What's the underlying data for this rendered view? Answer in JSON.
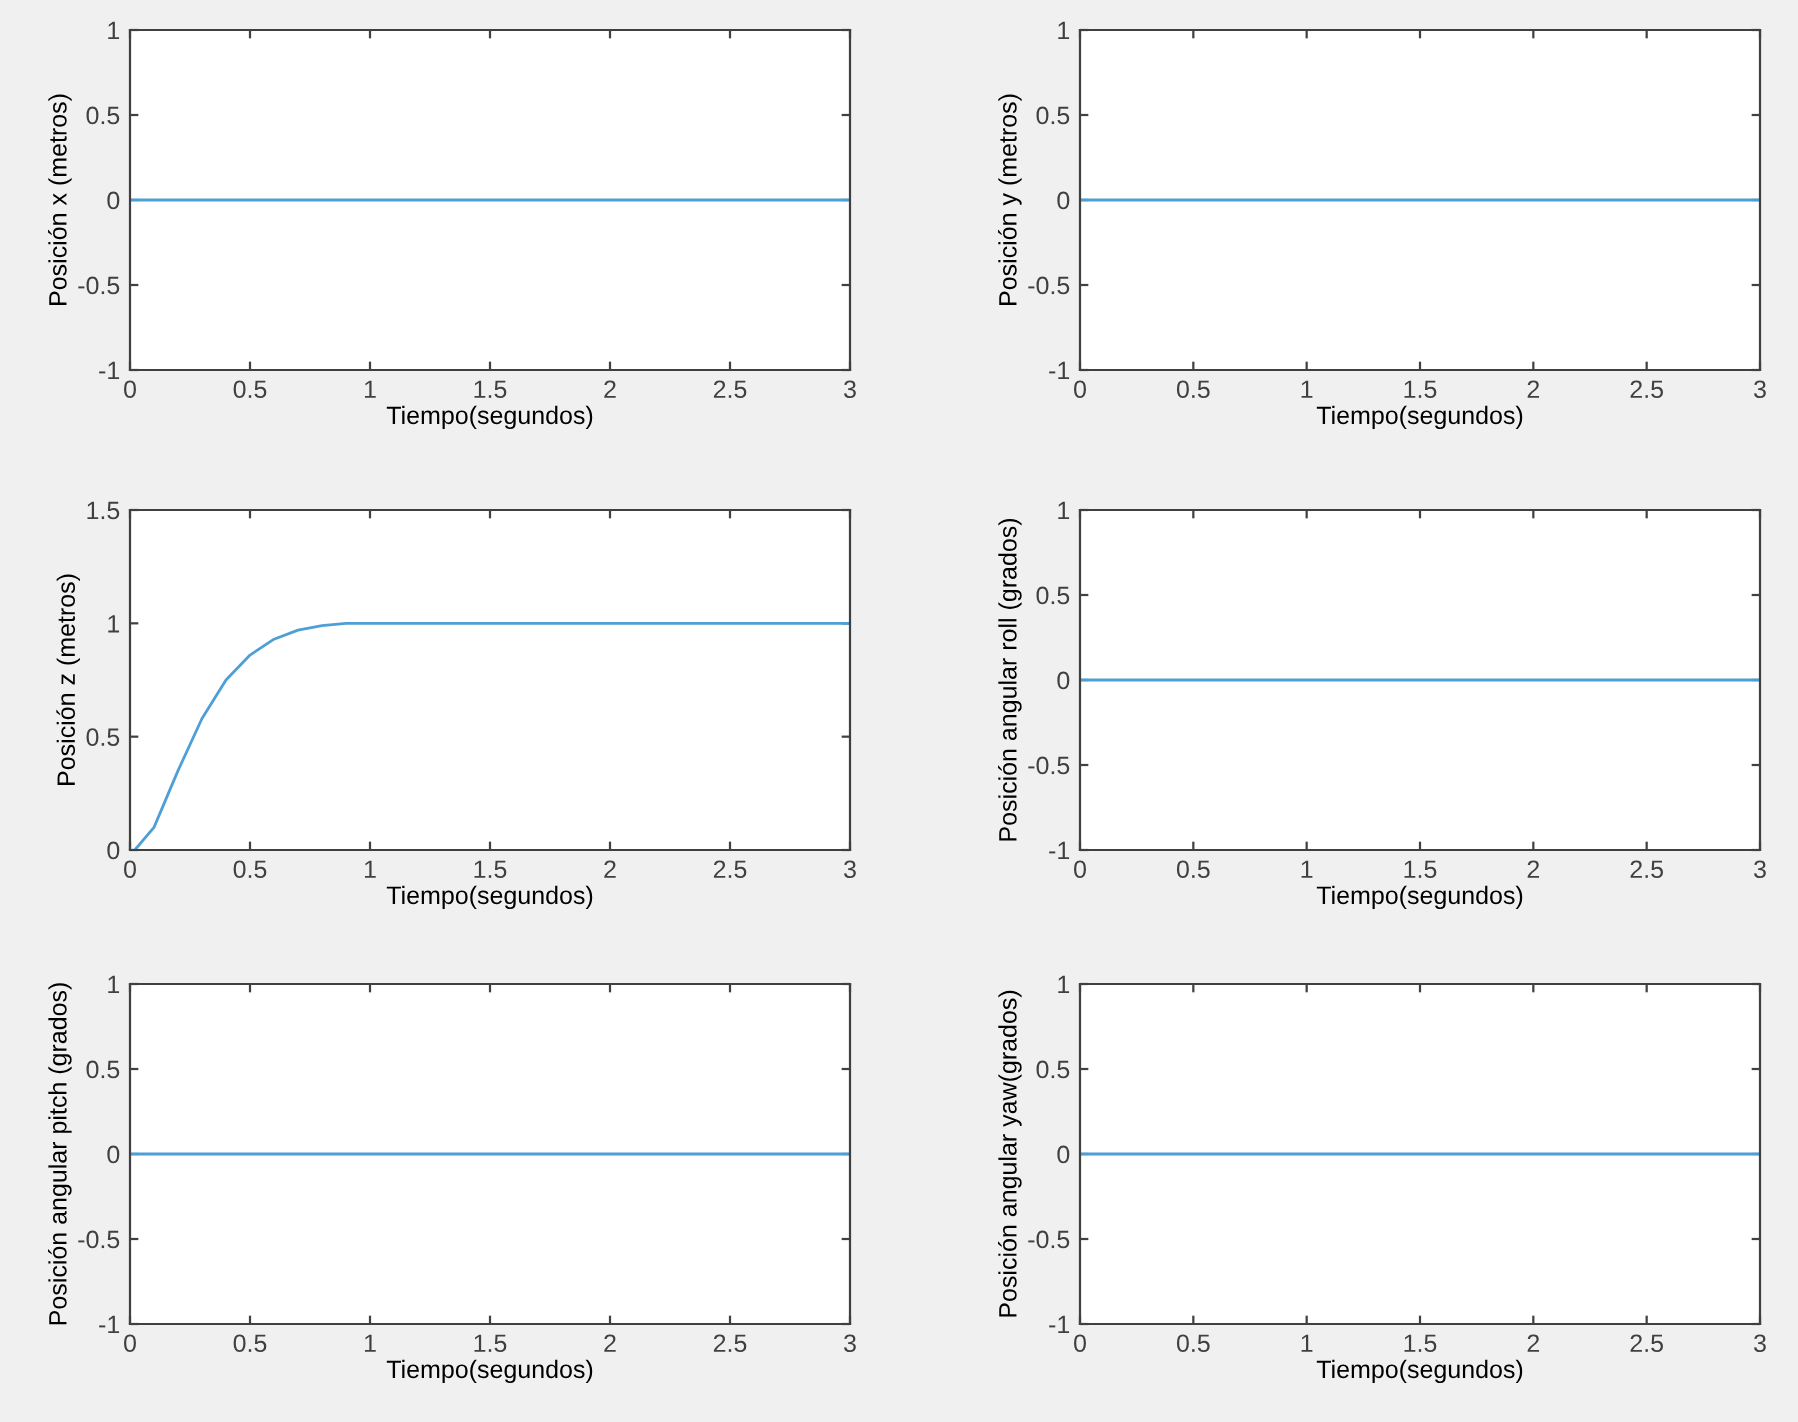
{
  "chart_data": [
    {
      "type": "line",
      "xlabel": "Tiempo(segundos)",
      "ylabel": "Posición x (metros)",
      "x": [
        0,
        3
      ],
      "series": [
        {
          "color": "#4d9fd6",
          "values": [
            0,
            0
          ]
        }
      ],
      "xlim": [
        0,
        3
      ],
      "xticks": [
        0,
        0.5,
        1,
        1.5,
        2,
        2.5,
        3
      ],
      "ylim": [
        -1,
        1
      ],
      "yticks": [
        -1,
        -0.5,
        0,
        0.5,
        1
      ],
      "grid": false,
      "legend": false
    },
    {
      "type": "line",
      "xlabel": "Tiempo(segundos)",
      "ylabel": "Posición y (metros)",
      "x": [
        0,
        3
      ],
      "series": [
        {
          "color": "#4d9fd6",
          "values": [
            0,
            0
          ]
        }
      ],
      "xlim": [
        0,
        3
      ],
      "xticks": [
        0,
        0.5,
        1,
        1.5,
        2,
        2.5,
        3
      ],
      "ylim": [
        -1,
        1
      ],
      "yticks": [
        -1,
        -0.5,
        0,
        0.5,
        1
      ],
      "grid": false,
      "legend": false
    },
    {
      "type": "line",
      "xlabel": "Tiempo(segundos)",
      "ylabel": "Posición z (metros)",
      "x": [
        0.02,
        0.1,
        0.2,
        0.3,
        0.4,
        0.5,
        0.6,
        0.7,
        0.8,
        0.9,
        1.0,
        1.5,
        2,
        2.5,
        3
      ],
      "series": [
        {
          "color": "#4d9fd6",
          "values": [
            0,
            0.1,
            0.35,
            0.58,
            0.75,
            0.86,
            0.93,
            0.97,
            0.99,
            1.0,
            1.0,
            1.0,
            1.0,
            1.0,
            1.0
          ]
        }
      ],
      "xlim": [
        0,
        3
      ],
      "xticks": [
        0,
        0.5,
        1,
        1.5,
        2,
        2.5,
        3
      ],
      "ylim": [
        0,
        1.5
      ],
      "yticks": [
        0,
        0.5,
        1,
        1.5
      ],
      "grid": false,
      "legend": false
    },
    {
      "type": "line",
      "xlabel": "Tiempo(segundos)",
      "ylabel": "Posición angular roll (grados)",
      "x": [
        0,
        3
      ],
      "series": [
        {
          "color": "#4d9fd6",
          "values": [
            0,
            0
          ]
        }
      ],
      "xlim": [
        0,
        3
      ],
      "xticks": [
        0,
        0.5,
        1,
        1.5,
        2,
        2.5,
        3
      ],
      "ylim": [
        -1,
        1
      ],
      "yticks": [
        -1,
        -0.5,
        0,
        0.5,
        1
      ],
      "grid": false,
      "legend": false
    },
    {
      "type": "line",
      "xlabel": "Tiempo(segundos)",
      "ylabel": "Posición angular pitch (grados)",
      "x": [
        0,
        3
      ],
      "series": [
        {
          "color": "#4d9fd6",
          "values": [
            0,
            0
          ]
        }
      ],
      "xlim": [
        0,
        3
      ],
      "xticks": [
        0,
        0.5,
        1,
        1.5,
        2,
        2.5,
        3
      ],
      "ylim": [
        -1,
        1
      ],
      "yticks": [
        -1,
        -0.5,
        0,
        0.5,
        1
      ],
      "grid": false,
      "legend": false
    },
    {
      "type": "line",
      "xlabel": "Tiempo(segundos)",
      "ylabel": "Posición angular yaw(grados)",
      "x": [
        0,
        3
      ],
      "series": [
        {
          "color": "#4d9fd6",
          "values": [
            0,
            0
          ]
        }
      ],
      "xlim": [
        0,
        3
      ],
      "xticks": [
        0,
        0.5,
        1,
        1.5,
        2,
        2.5,
        3
      ],
      "ylim": [
        -1,
        1
      ],
      "yticks": [
        -1,
        -0.5,
        0,
        0.5,
        1
      ],
      "grid": false,
      "legend": false
    }
  ]
}
